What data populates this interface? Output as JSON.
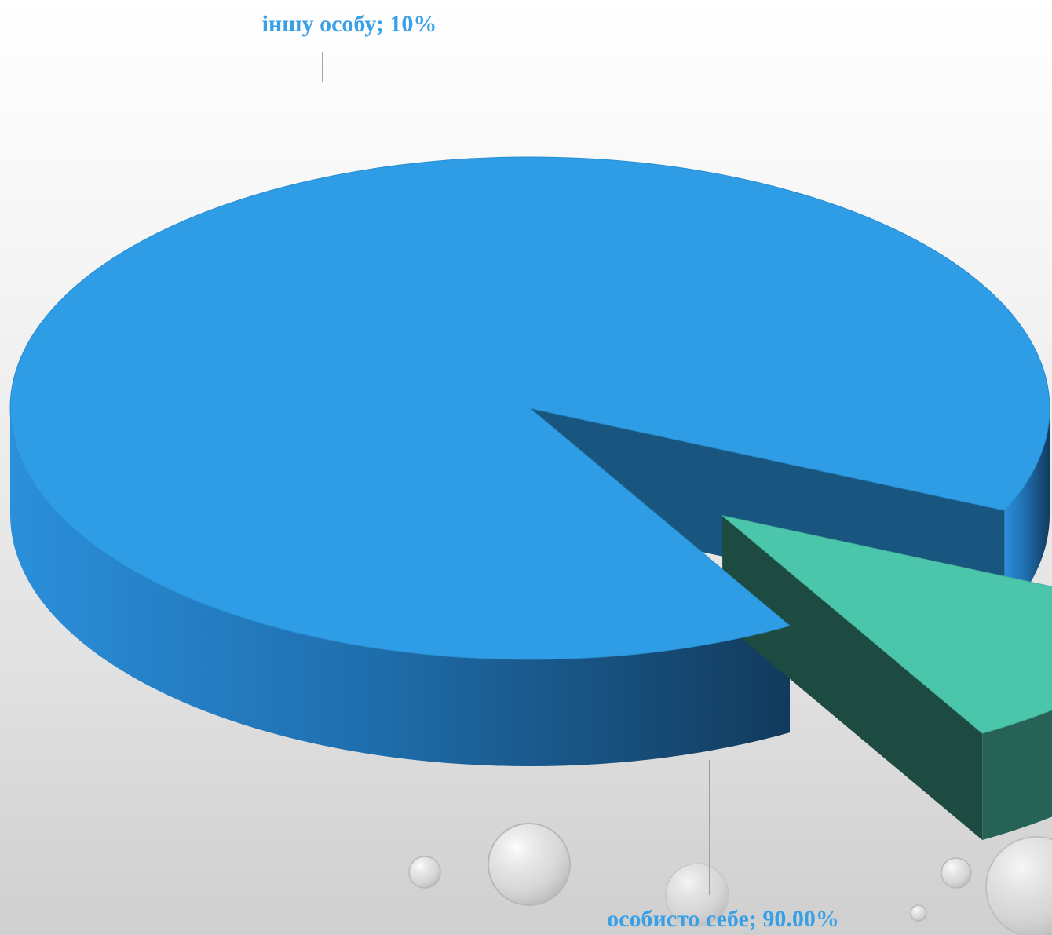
{
  "chart_data": {
    "type": "pie",
    "title": "",
    "slices": [
      {
        "label": "особисто себе",
        "value": 90,
        "display": "особисто себе; 90.00%",
        "color": "#2e9de6"
      },
      {
        "label": "іншу особу",
        "value": 10,
        "display": "іншу особу; 10%",
        "color": "#4bc6ab"
      }
    ],
    "label_color": "#3aa0e6",
    "explode": [
      "іншу особу"
    ],
    "style": "3d"
  }
}
